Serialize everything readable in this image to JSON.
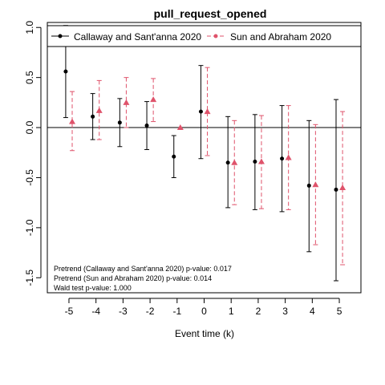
{
  "chart_data": {
    "type": "scatter",
    "title": "pull_request_opened",
    "xlabel": "Event time (k)",
    "ylabel": "",
    "x": [
      -5,
      -4,
      -3,
      -2,
      -1,
      0,
      1,
      2,
      3,
      4,
      5
    ],
    "x_tick_labels": [
      "-5",
      "-4",
      "-3",
      "-2",
      "-1",
      "0",
      "1",
      "2",
      "3",
      "4",
      "5"
    ],
    "y_ticks": [
      -1.5,
      -1.0,
      -0.5,
      0.0,
      0.5,
      1.0
    ],
    "y_tick_labels": [
      "-1.5",
      "-1.0",
      "-0.5",
      "0.0",
      "0.5",
      "1.0"
    ],
    "xlim": [
      -5.8,
      5.8
    ],
    "ylim": [
      -1.65,
      1.05
    ],
    "reference_line_y": 0,
    "legend_position": "top",
    "series": [
      {
        "name": "Callaway and Sant'anna 2020",
        "color": "#000000",
        "marker": "circle",
        "line_style": "solid",
        "estimate": [
          0.56,
          0.11,
          0.05,
          0.02,
          -0.29,
          0.16,
          -0.35,
          -0.34,
          -0.31,
          -0.58,
          -0.62
        ],
        "ci_lower": [
          0.1,
          -0.12,
          -0.19,
          -0.22,
          -0.5,
          -0.31,
          -0.8,
          -0.82,
          -0.84,
          -1.24,
          -1.53
        ],
        "ci_upper": [
          1.02,
          0.34,
          0.29,
          0.26,
          -0.08,
          0.62,
          0.11,
          0.13,
          0.22,
          0.07,
          0.28
        ]
      },
      {
        "name": "Sun and Abraham 2020",
        "color": "#DF536B",
        "marker": "triangle",
        "line_style": "dashed",
        "estimate": [
          0.06,
          0.17,
          0.25,
          0.28,
          0.0,
          0.16,
          -0.35,
          -0.34,
          -0.3,
          -0.57,
          -0.6
        ],
        "ci_lower": [
          -0.23,
          -0.12,
          0.0,
          0.06,
          0.0,
          -0.28,
          -0.77,
          -0.81,
          -0.82,
          -1.17,
          -1.37
        ],
        "ci_upper": [
          0.36,
          0.47,
          0.5,
          0.49,
          0.0,
          0.6,
          0.07,
          0.12,
          0.22,
          0.03,
          0.16
        ]
      }
    ],
    "annotations": [
      "Pretrend (Callaway and Sant'anna 2020) p-value: 0.017",
      "Pretrend (Sun and Abraham 2020) p-value: 0.014",
      "Wald test p-value: 1.000"
    ]
  }
}
